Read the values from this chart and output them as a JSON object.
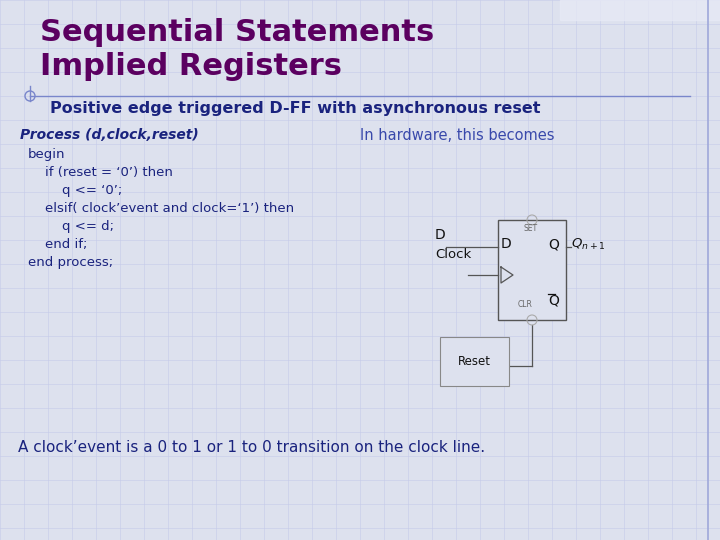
{
  "title_line1": "Sequential Statements",
  "title_line2": "Implied Registers",
  "subtitle": "Positive edge triggered D-FF with asynchronous reset",
  "title_color": "#5b0060",
  "subtitle_color": "#1a237e",
  "bg_color": "#dde1ee",
  "process_label": "Process (d,clock,reset)",
  "code_lines": [
    "begin",
    "    if (reset = ‘0’) then",
    "        q <= ‘0’;",
    "    elsif( clock’event and clock=‘1’) then",
    "        q <= d;",
    "    end if;",
    "end process;"
  ],
  "hardware_label": "In hardware, this becomes",
  "bottom_text": "A clock’event is a 0 to 1 or 1 to 0 transition on the clock line.",
  "code_color": "#1a237e",
  "process_label_color": "#1a237e",
  "hardware_label_color": "#3949ab",
  "bottom_text_color": "#1a237e",
  "grid_color": "#c5cae9",
  "divider_color": "#7986cb",
  "circuit_color": "#555555"
}
